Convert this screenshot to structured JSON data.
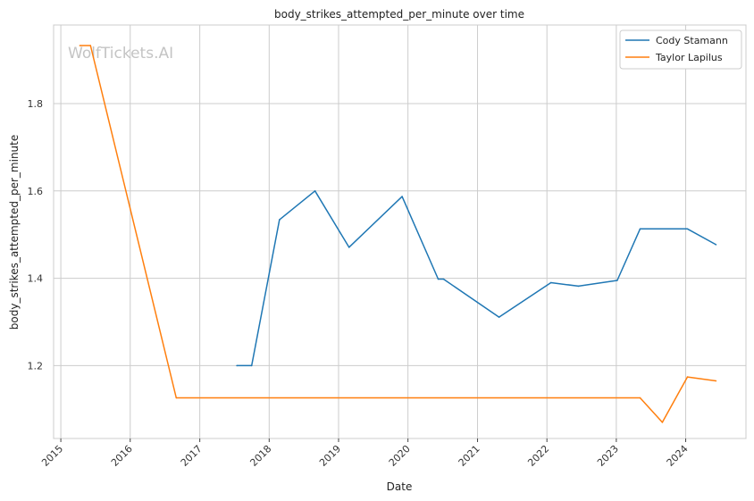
{
  "chart_data": {
    "type": "line",
    "title": "body_strikes_attempted_per_minute over time",
    "xlabel": "Date",
    "ylabel": "body_strikes_attempted_per_minute",
    "watermark": "WolfTickets.AI",
    "x_type": "date",
    "xlim": [
      "2014-11-24",
      "2024-11-13"
    ],
    "ylim": [
      1.033,
      1.98
    ],
    "x_ticks": [
      "2015-01-01",
      "2016-01-01",
      "2017-01-01",
      "2018-01-01",
      "2019-01-01",
      "2020-01-01",
      "2021-01-01",
      "2022-01-01",
      "2023-01-01",
      "2024-01-01"
    ],
    "x_tick_labels": [
      "2015",
      "2016",
      "2017",
      "2018",
      "2019",
      "2020",
      "2021",
      "2022",
      "2023",
      "2024"
    ],
    "y_ticks": [
      1.2,
      1.4,
      1.6,
      1.8
    ],
    "y_tick_labels": [
      "1.2",
      "1.4",
      "1.6",
      "1.8"
    ],
    "grid": true,
    "legend_position": "top-right",
    "series": [
      {
        "name": "Cody Stamann",
        "color": "#1f77b4",
        "points": [
          [
            "2017-07-15",
            1.2
          ],
          [
            "2017-10-01",
            1.2
          ],
          [
            "2018-02-24",
            1.534
          ],
          [
            "2018-08-30",
            1.6
          ],
          [
            "2019-02-25",
            1.471
          ],
          [
            "2019-12-01",
            1.587
          ],
          [
            "2020-06-08",
            1.398
          ],
          [
            "2020-07-06",
            1.398
          ],
          [
            "2021-04-24",
            1.311
          ],
          [
            "2022-01-22",
            1.39
          ],
          [
            "2022-06-16",
            1.382
          ],
          [
            "2023-01-06",
            1.395
          ],
          [
            "2023-05-06",
            1.513
          ],
          [
            "2024-01-10",
            1.513
          ],
          [
            "2024-06-08",
            1.477
          ]
        ]
      },
      {
        "name": "Taylor Lapilus",
        "color": "#ff7f0e",
        "points": [
          [
            "2015-04-11",
            1.933
          ],
          [
            "2015-06-06",
            1.933
          ],
          [
            "2016-08-30",
            1.126
          ],
          [
            "2023-05-06",
            1.126
          ],
          [
            "2023-08-31",
            1.07
          ],
          [
            "2024-01-10",
            1.174
          ],
          [
            "2024-06-08",
            1.165
          ]
        ]
      }
    ]
  }
}
